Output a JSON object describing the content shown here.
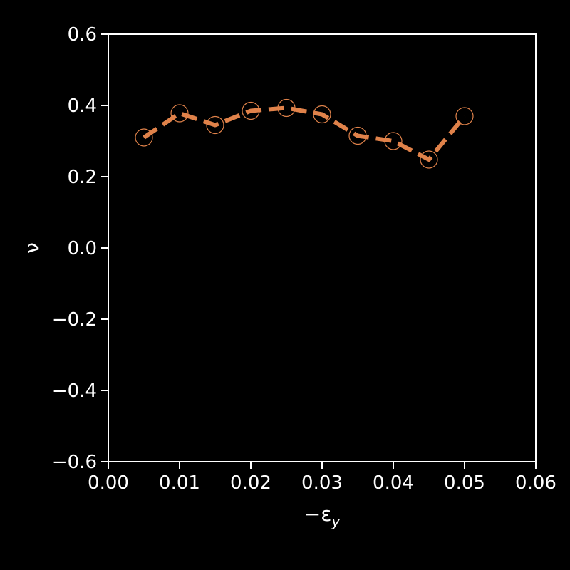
{
  "chart_data": {
    "type": "line",
    "xlabel_base": "−ε",
    "xlabel_sub": "y",
    "ylabel": "ν",
    "xlim": [
      0.0,
      0.06
    ],
    "ylim": [
      -0.6,
      0.6
    ],
    "x_ticks": [
      0.0,
      0.01,
      0.02,
      0.03,
      0.04,
      0.05,
      0.06
    ],
    "x_tick_labels": [
      "0.00",
      "0.01",
      "0.02",
      "0.03",
      "0.04",
      "0.05",
      "0.06"
    ],
    "y_ticks": [
      0.6,
      0.4,
      0.2,
      0.0,
      -0.2,
      -0.4,
      -0.6
    ],
    "y_tick_labels": [
      "0.6",
      "0.4",
      "0.2",
      "0.0",
      "−0.2",
      "−0.4",
      "−0.6"
    ],
    "grid": false,
    "background_color": "#000000",
    "axis_color": "#ffffff",
    "series": [
      {
        "color": "#e0824a",
        "line_style": "dashed",
        "marker": "open-circle",
        "x": [
          0.005,
          0.01,
          0.015,
          0.02,
          0.025,
          0.03,
          0.035,
          0.04,
          0.045,
          0.05
        ],
        "y": [
          0.31,
          0.378,
          0.345,
          0.385,
          0.393,
          0.375,
          0.315,
          0.3,
          0.248,
          0.37
        ]
      }
    ]
  }
}
